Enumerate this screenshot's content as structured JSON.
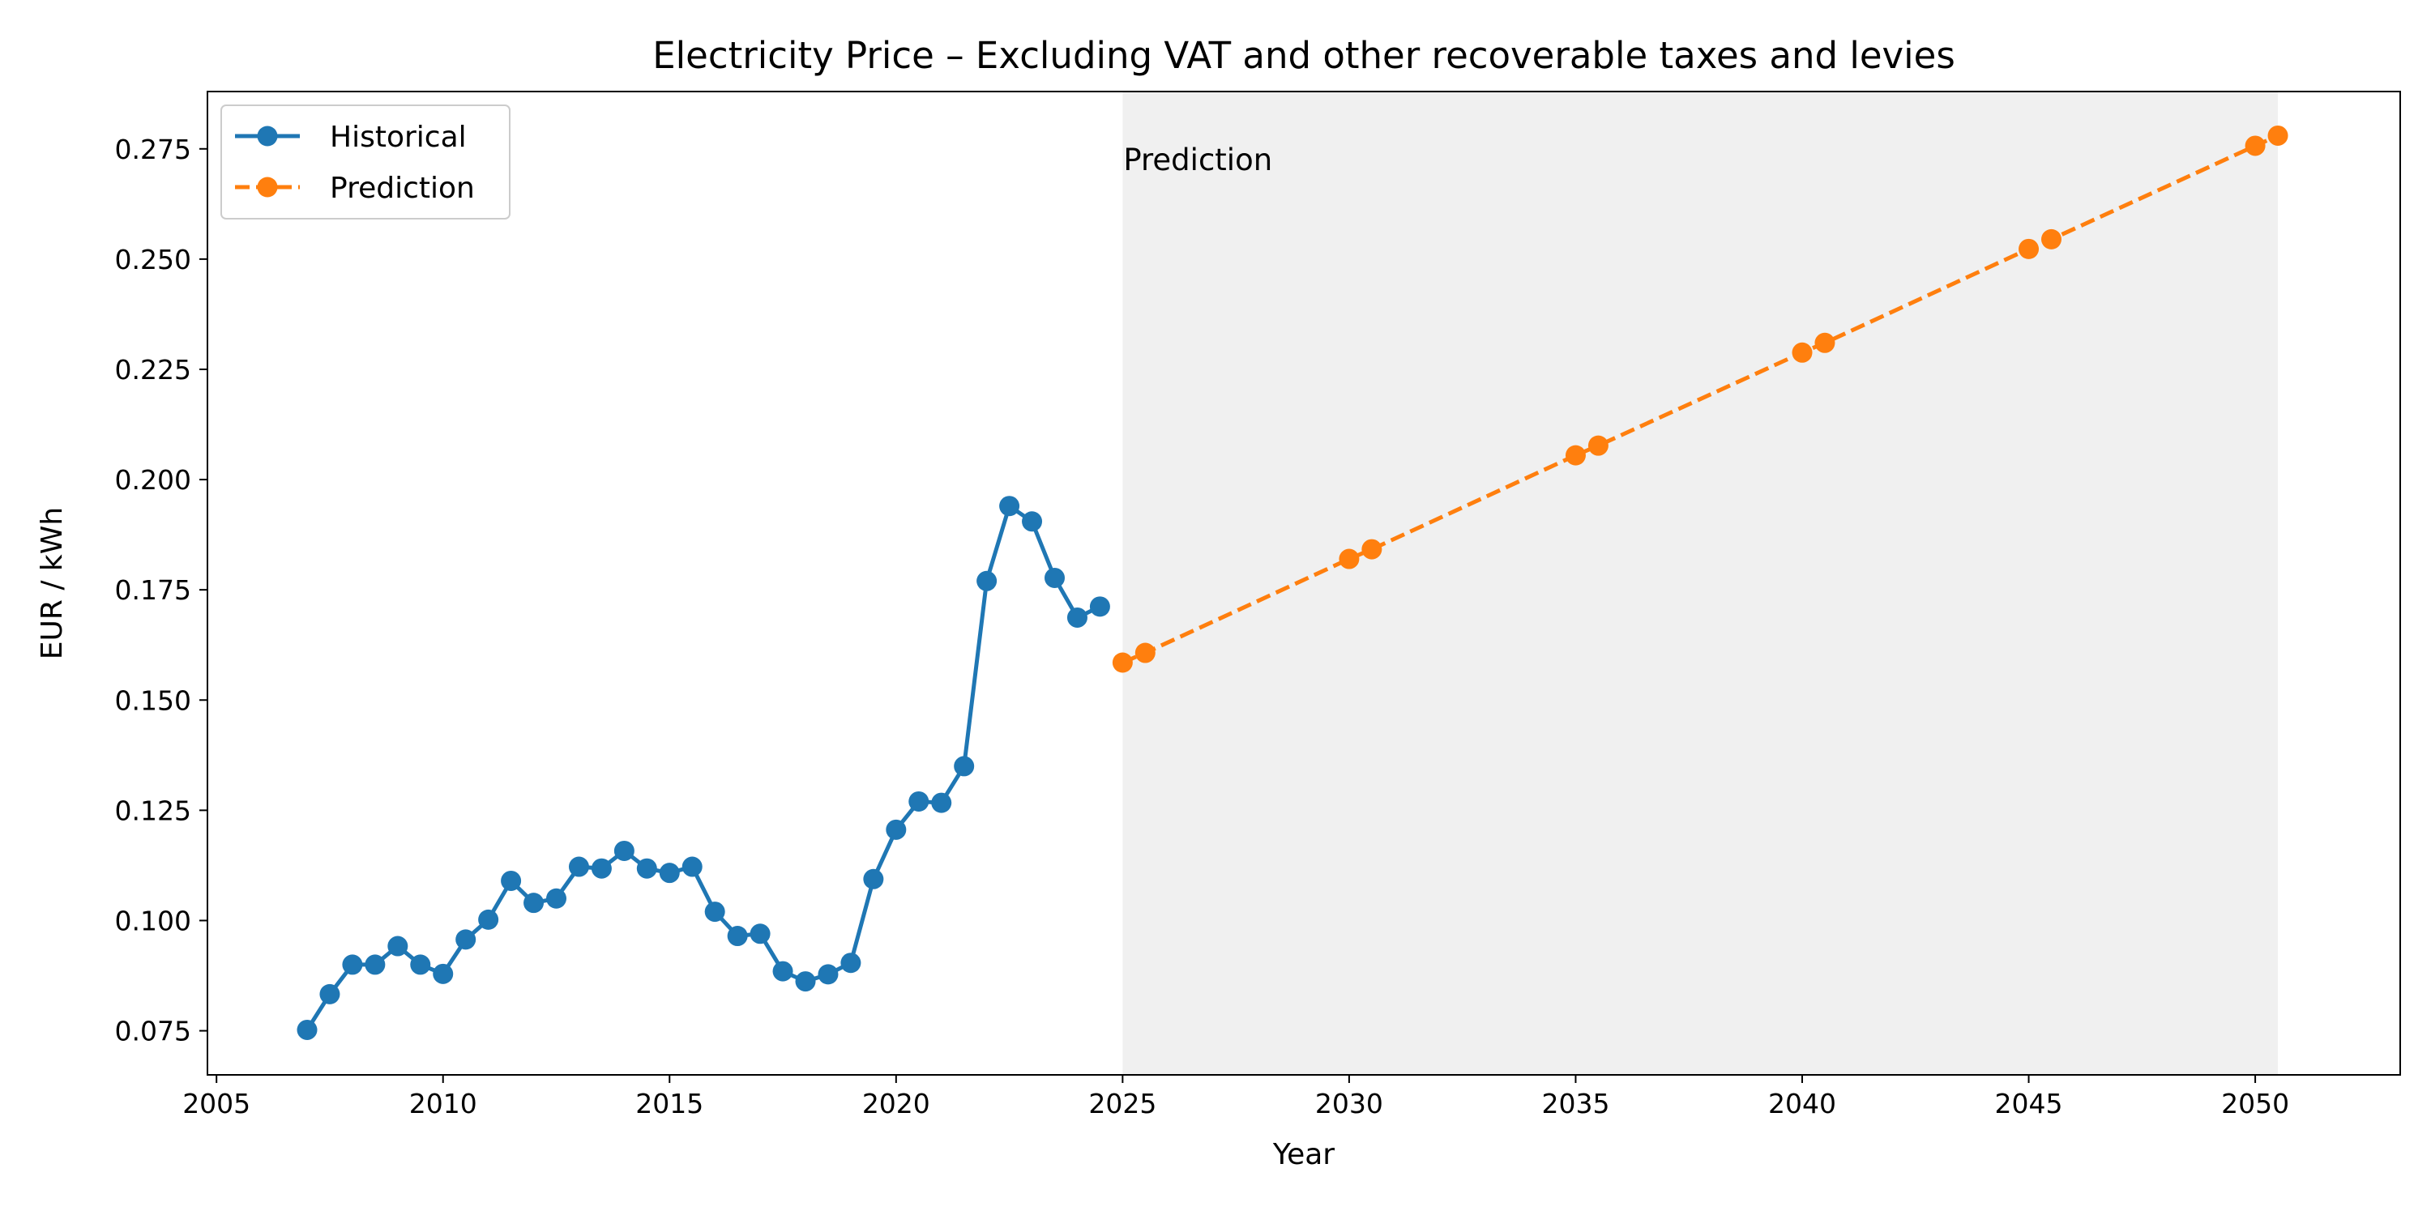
{
  "chart_data": {
    "type": "line",
    "title": "Electricity Price – Excluding VAT and other recoverable taxes and levies",
    "xlabel": "Year",
    "ylabel": "EUR / kWh",
    "xlim": [
      2004.8,
      2053.2
    ],
    "ylim": [
      0.065,
      0.288
    ],
    "x_ticks": [
      2005,
      2010,
      2015,
      2020,
      2025,
      2030,
      2035,
      2040,
      2045,
      2050
    ],
    "x_tick_labels": [
      "2005",
      "2010",
      "2015",
      "2020",
      "2025",
      "2030",
      "2035",
      "2040",
      "2045",
      "2050"
    ],
    "y_ticks": [
      0.075,
      0.1,
      0.125,
      0.15,
      0.175,
      0.2,
      0.225,
      0.25,
      0.275
    ],
    "y_tick_labels": [
      "0.075",
      "0.100",
      "0.125",
      "0.150",
      "0.175",
      "0.200",
      "0.225",
      "0.250",
      "0.275"
    ],
    "grid": false,
    "legend_position": "top-left",
    "shaded_region": {
      "x_start": 2025.0,
      "x_end": 2050.5,
      "color": "#f0f0f0",
      "label": "Prediction"
    },
    "series": [
      {
        "name": "Historical",
        "style": "solid",
        "marker": "circle",
        "color": "#1f77b4",
        "x": [
          2007.0,
          2007.5,
          2008.0,
          2008.5,
          2009.0,
          2009.5,
          2010.0,
          2010.5,
          2011.0,
          2011.5,
          2012.0,
          2012.5,
          2013.0,
          2013.5,
          2014.0,
          2014.5,
          2015.0,
          2015.5,
          2016.0,
          2016.5,
          2017.0,
          2017.5,
          2018.0,
          2018.5,
          2019.0,
          2019.5,
          2020.0,
          2020.5,
          2021.0,
          2021.5,
          2022.0,
          2022.5,
          2023.0,
          2023.5,
          2024.0,
          2024.5
        ],
        "y": [
          0.0752,
          0.0833,
          0.09,
          0.09,
          0.0942,
          0.09,
          0.0879,
          0.0957,
          0.1002,
          0.109,
          0.104,
          0.105,
          0.1122,
          0.1118,
          0.1158,
          0.1118,
          0.1108,
          0.1122,
          0.102,
          0.0965,
          0.097,
          0.0885,
          0.0862,
          0.0878,
          0.0904,
          0.1094,
          0.1206,
          0.127,
          0.1267,
          0.135,
          0.177,
          0.194,
          0.1905,
          0.1777,
          0.1687,
          0.1712
        ]
      },
      {
        "name": "Prediction",
        "style": "dashed",
        "marker": "circle",
        "color": "#ff7f0e",
        "x": [
          2025.0,
          2025.5,
          2030.0,
          2030.5,
          2035.0,
          2035.5,
          2040.0,
          2040.5,
          2045.0,
          2045.5,
          2050.0,
          2050.5
        ],
        "y": [
          0.1585,
          0.1607,
          0.182,
          0.1842,
          0.2055,
          0.2077,
          0.2288,
          0.231,
          0.2523,
          0.2545,
          0.2757,
          0.278
        ]
      }
    ]
  }
}
